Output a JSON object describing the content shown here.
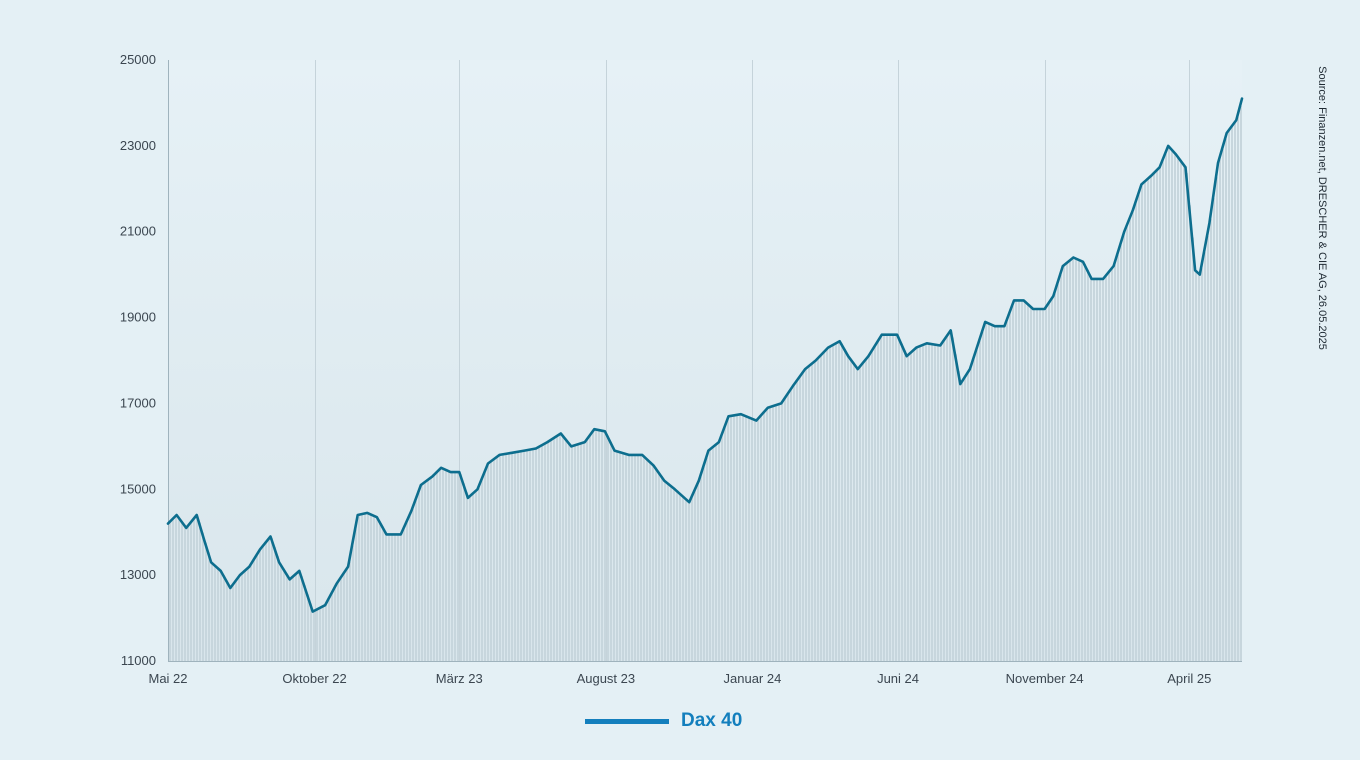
{
  "colors": {
    "background": "#e4f0f5",
    "line": "#0d6e8e",
    "bars": "#c7d6dd",
    "legend": "#137fbd",
    "grid": "#c5d3da"
  },
  "source_text": "Source: Finanzen.net, DRESCHER & CIE AG, 26.05.2025",
  "legend": {
    "label": "Dax 40"
  },
  "chart_data": {
    "type": "line",
    "xlabel": "",
    "ylabel": "",
    "ylim": [
      11000,
      25000
    ],
    "y_ticks": [
      11000,
      13000,
      15000,
      17000,
      19000,
      21000,
      23000,
      25000
    ],
    "x_tick_labels": [
      "Mai 22",
      "Oktober 22",
      "März 23",
      "August 23",
      "Januar 24",
      "Juni 24",
      "November 24",
      "April 25"
    ],
    "x_tick_dates": [
      "2022-05-01",
      "2022-10-01",
      "2023-03-01",
      "2023-08-01",
      "2024-01-01",
      "2024-06-01",
      "2024-11-01",
      "2025-04-01"
    ],
    "x_range": [
      "2022-05-01",
      "2025-05-26"
    ],
    "grid": {
      "vertical": true,
      "horizontal": false
    },
    "series": [
      {
        "name": "Dax 40",
        "x": [
          "2022-05-01",
          "2022-05-10",
          "2022-05-20",
          "2022-05-31",
          "2022-06-08",
          "2022-06-15",
          "2022-06-25",
          "2022-07-05",
          "2022-07-15",
          "2022-07-25",
          "2022-08-05",
          "2022-08-16",
          "2022-08-25",
          "2022-09-05",
          "2022-09-15",
          "2022-09-29",
          "2022-10-12",
          "2022-10-24",
          "2022-11-05",
          "2022-11-15",
          "2022-11-25",
          "2022-12-05",
          "2022-12-15",
          "2022-12-30",
          "2023-01-10",
          "2023-01-20",
          "2023-02-01",
          "2023-02-10",
          "2023-02-20",
          "2023-03-01",
          "2023-03-10",
          "2023-03-20",
          "2023-03-31",
          "2023-04-12",
          "2023-04-25",
          "2023-05-08",
          "2023-05-20",
          "2023-06-01",
          "2023-06-15",
          "2023-06-26",
          "2023-07-10",
          "2023-07-20",
          "2023-07-31",
          "2023-08-10",
          "2023-08-25",
          "2023-09-08",
          "2023-09-20",
          "2023-10-01",
          "2023-10-12",
          "2023-10-27",
          "2023-11-06",
          "2023-11-16",
          "2023-11-27",
          "2023-12-07",
          "2023-12-20",
          "2024-01-05",
          "2024-01-17",
          "2024-01-31",
          "2024-02-12",
          "2024-02-25",
          "2024-03-07",
          "2024-03-20",
          "2024-04-01",
          "2024-04-10",
          "2024-04-20",
          "2024-05-01",
          "2024-05-15",
          "2024-05-31",
          "2024-06-10",
          "2024-06-20",
          "2024-07-01",
          "2024-07-15",
          "2024-07-26",
          "2024-08-05",
          "2024-08-15",
          "2024-08-31",
          "2024-09-10",
          "2024-09-20",
          "2024-09-30",
          "2024-10-10",
          "2024-10-20",
          "2024-11-01",
          "2024-11-10",
          "2024-11-20",
          "2024-12-01",
          "2024-12-11",
          "2024-12-20",
          "2025-01-01",
          "2025-01-12",
          "2025-01-23",
          "2025-02-01",
          "2025-02-10",
          "2025-02-20",
          "2025-03-01",
          "2025-03-10",
          "2025-03-18",
          "2025-03-28",
          "2025-04-07",
          "2025-04-12",
          "2025-04-22",
          "2025-05-01",
          "2025-05-10",
          "2025-05-20",
          "2025-05-26"
        ],
        "values": [
          14200,
          14400,
          14100,
          14400,
          13800,
          13300,
          13100,
          12700,
          13000,
          13200,
          13600,
          13900,
          13300,
          12900,
          13100,
          12150,
          12300,
          12800,
          13200,
          14400,
          14450,
          14350,
          13950,
          13950,
          14500,
          15100,
          15300,
          15500,
          15400,
          15400,
          14800,
          15000,
          15600,
          15800,
          15850,
          15900,
          15950,
          16100,
          16300,
          16000,
          16100,
          16400,
          16350,
          15900,
          15800,
          15800,
          15550,
          15200,
          15000,
          14700,
          15200,
          15900,
          16100,
          16700,
          16750,
          16600,
          16900,
          17000,
          17400,
          17800,
          18000,
          18300,
          18450,
          18100,
          17800,
          18100,
          18600,
          18600,
          18100,
          18300,
          18400,
          18350,
          18700,
          17450,
          17800,
          18900,
          18800,
          18800,
          19400,
          19400,
          19200,
          19200,
          19500,
          20200,
          20400,
          20300,
          19900,
          19900,
          20200,
          21000,
          21500,
          22100,
          22300,
          22500,
          23000,
          22800,
          22500,
          20100,
          20000,
          21200,
          22600,
          23300,
          23600,
          24100
        ]
      }
    ]
  }
}
